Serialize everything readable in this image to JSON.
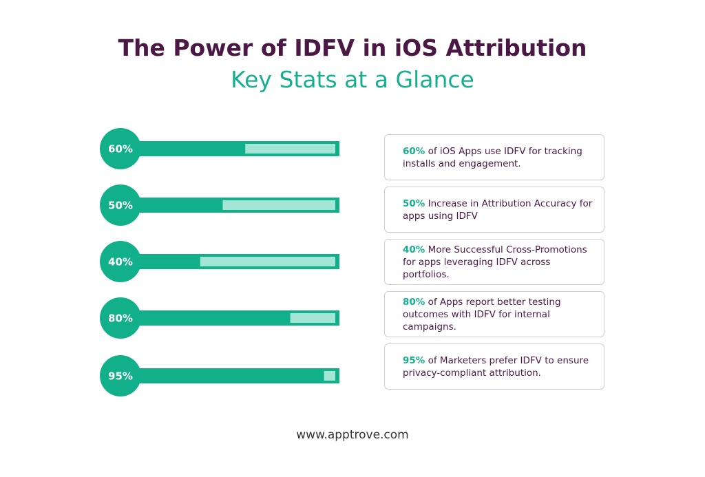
{
  "header": {
    "title": "The Power of IDFV in iOS Attribution",
    "subtitle": "Key Stats at a Glance"
  },
  "chart_data": {
    "type": "bar",
    "orientation": "horizontal",
    "values": [
      60,
      50,
      40,
      80,
      95
    ],
    "value_labels": [
      "60%",
      "50%",
      "40%",
      "80%",
      "95%"
    ],
    "xlim": [
      0,
      100
    ],
    "color": "#12b08a",
    "track_color": "#a3e6d6"
  },
  "cards": [
    "of iOS Apps use IDFV for tracking installs and engagement.",
    "Increase in Attribution Accuracy for apps using IDFV",
    "More Successful Cross-Promotions for apps leveraging IDFV across portfolios.",
    "of Apps report better testing outcomes with IDFV for internal campaigns.",
    "of Marketers prefer IDFV to ensure privacy-compliant attribution."
  ],
  "footer": "www.apptrove.com"
}
